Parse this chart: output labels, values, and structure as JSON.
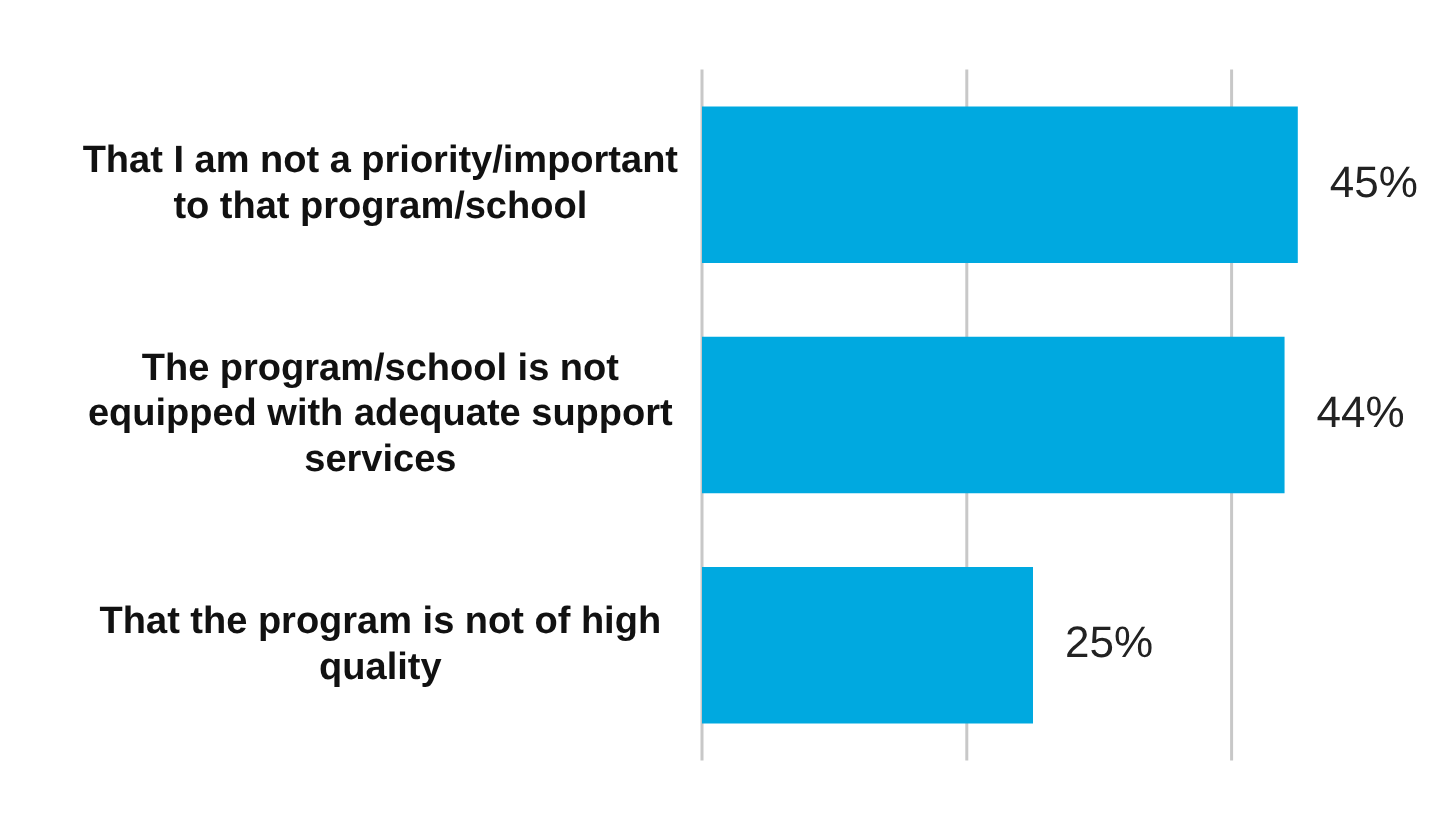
{
  "chart_data": {
    "type": "bar",
    "orientation": "horizontal",
    "categories": [
      "That I am not a priority/important to that program/school",
      "The program/school is not equipped with adequate support services",
      "That the program is not of high quality"
    ],
    "values": [
      45,
      44,
      25
    ],
    "color": "#00a9e0",
    "ref_lines": [
      {
        "axis": "x",
        "value": 0,
        "color": "#c8c8c8"
      },
      {
        "axis": "x",
        "value": 20,
        "color": "#c8c8c8"
      },
      {
        "axis": "x",
        "value": 40,
        "color": "#c8c8c8"
      }
    ],
    "tick_labels": "y",
    "data_labels": true,
    "value_labels": [
      "45%",
      "44%",
      "25%"
    ],
    "legend": false
  }
}
